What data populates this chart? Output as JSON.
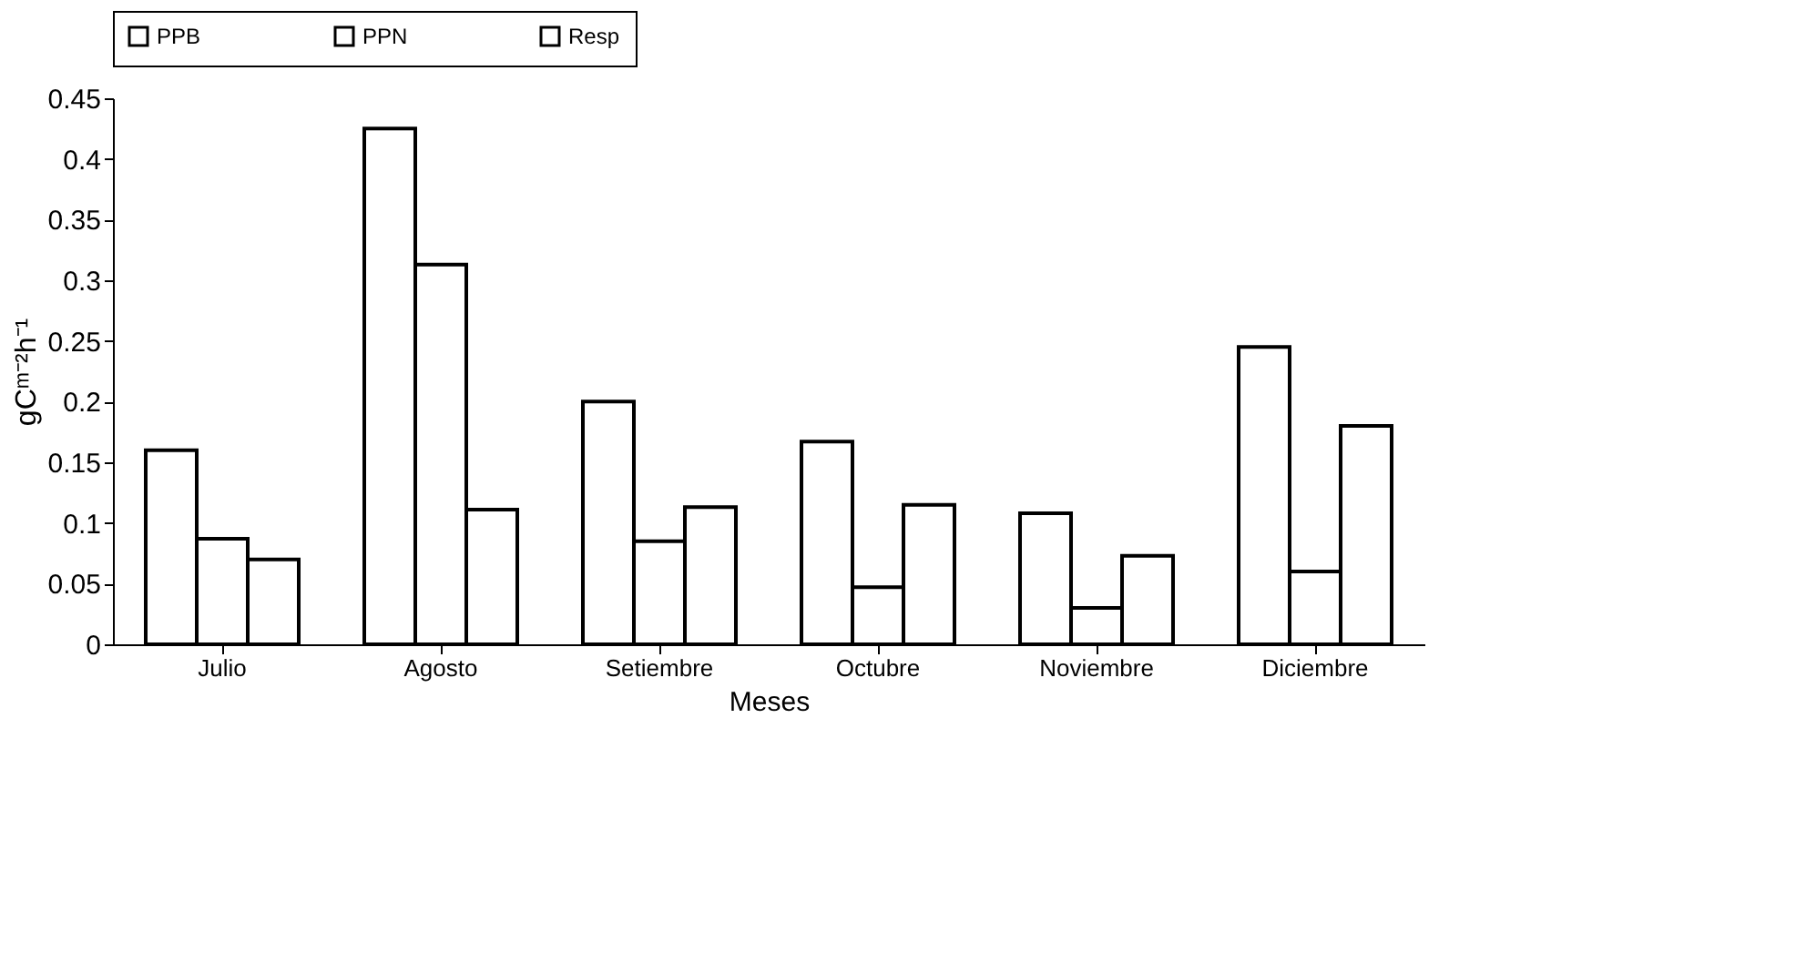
{
  "chart_data": {
    "type": "bar",
    "xlabel": "Meses",
    "ylabel": "gCᵐ⁻²h⁻¹",
    "categories": [
      "Julio",
      "Agosto",
      "Setiembre",
      "Octubre",
      "Noviembre",
      "Diciembre"
    ],
    "series": [
      {
        "name": "PPB",
        "color": "#ffffff",
        "values": [
          0.16,
          0.425,
          0.2,
          0.167,
          0.108,
          0.245
        ]
      },
      {
        "name": "PPN",
        "color": "#ffffff",
        "values": [
          0.087,
          0.313,
          0.085,
          0.047,
          0.03,
          0.06
        ]
      },
      {
        "name": "Resp",
        "color": "#ffffff",
        "values": [
          0.07,
          0.111,
          0.113,
          0.115,
          0.073,
          0.18
        ]
      }
    ],
    "ylim": [
      0,
      0.45
    ],
    "yticks": [
      0,
      0.05,
      0.1,
      0.15,
      0.2,
      0.25,
      0.3,
      0.35,
      0.4,
      0.45
    ],
    "grid": false,
    "legend": "top"
  }
}
